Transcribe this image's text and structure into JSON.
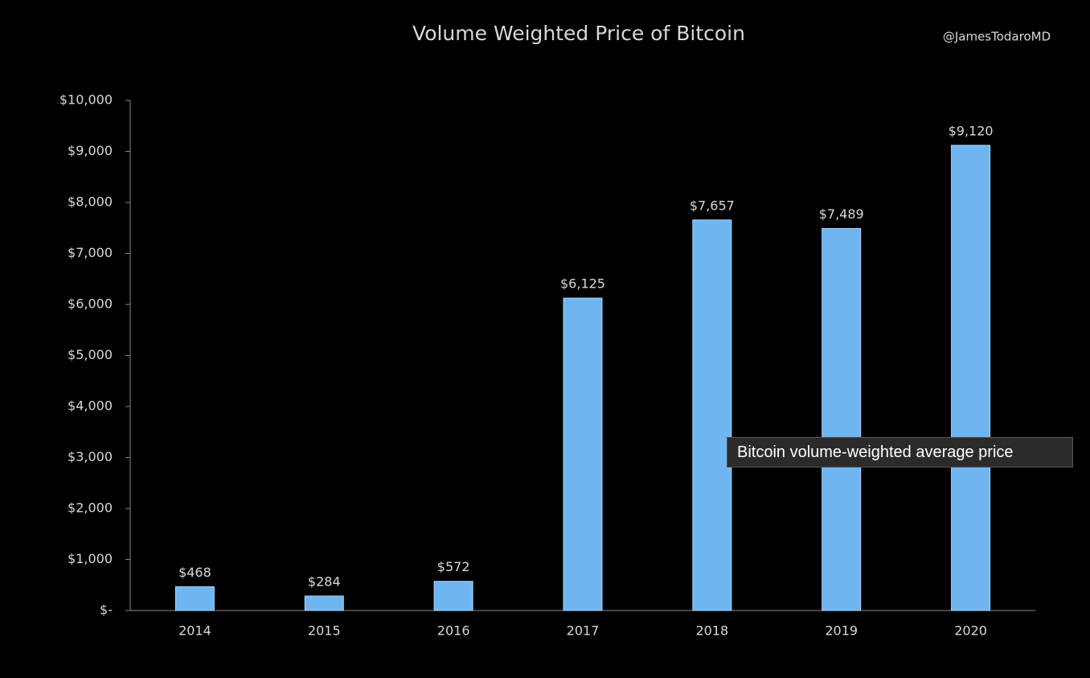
{
  "chart_data": {
    "type": "bar",
    "title": "Volume Weighted Price of Bitcoin",
    "credit": "@JamesTodaroMD",
    "categories": [
      "2014",
      "2015",
      "2016",
      "2017",
      "2018",
      "2019",
      "2020"
    ],
    "values": [
      468,
      284,
      572,
      6125,
      7657,
      7489,
      9120
    ],
    "value_labels": [
      "$468",
      "$284",
      "$572",
      "$6,125",
      "$7,657",
      "$7,489",
      "$9,120"
    ],
    "color": "#6fb6f1",
    "ylim": [
      0,
      10000
    ],
    "yticks": [
      {
        "value": 0,
        "label": "$-"
      },
      {
        "value": 1000,
        "label": "$1,000"
      },
      {
        "value": 2000,
        "label": "$2,000"
      },
      {
        "value": 3000,
        "label": "$3,000"
      },
      {
        "value": 4000,
        "label": "$4,000"
      },
      {
        "value": 5000,
        "label": "$5,000"
      },
      {
        "value": 6000,
        "label": "$6,000"
      },
      {
        "value": 7000,
        "label": "$7,000"
      },
      {
        "value": 8000,
        "label": "$8,000"
      },
      {
        "value": 9000,
        "label": "$9,000"
      },
      {
        "value": 10000,
        "label": "$10,000"
      }
    ],
    "grid": false
  },
  "tooltip": "Bitcoin volume-weighted average price"
}
